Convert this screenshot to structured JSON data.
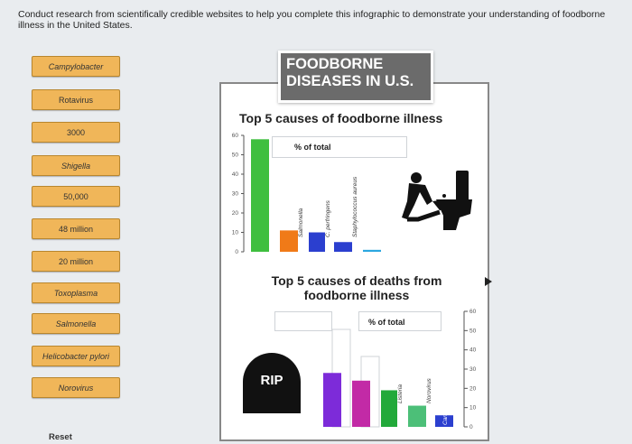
{
  "instructions": "Conduct research from scientifically credible websites to help you complete this infographic to demonstrate your understanding of foodborne illness in the United States.",
  "drag_items": [
    {
      "label": "Campylobacter",
      "italic": true
    },
    {
      "label": "Rotavirus",
      "italic": false
    },
    {
      "label": "3000",
      "italic": false
    },
    {
      "label": "Shigella",
      "italic": true
    },
    {
      "label": "50,000",
      "italic": false
    },
    {
      "label": "48 million",
      "italic": false
    },
    {
      "label": "20 million",
      "italic": false
    },
    {
      "label": "Toxoplasma",
      "italic": true
    },
    {
      "label": "Salmonella",
      "italic": true
    },
    {
      "label": "Helicobacter pylori",
      "italic": true
    },
    {
      "label": "Norovirus",
      "italic": true
    }
  ],
  "reset_label": "Reset",
  "banner": {
    "line1": "FOODBORNE",
    "line2": "DISEASES IN U.S."
  },
  "illness_chart": {
    "title": "Top 5 causes of foodborne illness",
    "pct_label": "% of total",
    "ticks": [
      "60",
      "50",
      "40",
      "30",
      "20",
      "10",
      "0"
    ]
  },
  "deaths_chart": {
    "title": "Top 5 causes of deaths from foodborne illness",
    "pct_label": "% of total",
    "ticks": [
      "60",
      "50",
      "40",
      "30",
      "20",
      "10",
      "0"
    ]
  },
  "rip_label": "RIP",
  "colors": {
    "green": "#3fbf3f",
    "orange": "#f07a18",
    "blue": "#2b3fcf",
    "purple": "#7d2bd9",
    "cyan": "#2ba7e0",
    "magenta": "#c22aa6",
    "green2": "#22a93a",
    "teal": "#4cbf78",
    "tile": "#f0b659"
  },
  "chart_data": [
    {
      "type": "bar",
      "title": "Top 5 causes of foodborne illness",
      "ylabel": "% of total",
      "ylim": [
        0,
        60
      ],
      "categories": [
        "",
        "Salmonella",
        "C. perfringens",
        "Staphylococcus aureus",
        ""
      ],
      "values": [
        58,
        11,
        10,
        5,
        1
      ],
      "bar_colors": [
        "#3fbf3f",
        "#f07a18",
        "#2b3fcf",
        "#2b3fcf",
        "#2ba7e0"
      ]
    },
    {
      "type": "bar",
      "title": "Top 5 causes of deaths from foodborne illness",
      "ylabel": "% of total",
      "ylim": [
        0,
        60
      ],
      "categories": [
        "",
        "",
        "Listeria",
        "Norovirus",
        "Campylobacter"
      ],
      "values": [
        28,
        24,
        19,
        11,
        6
      ],
      "bar_colors": [
        "#7d2bd9",
        "#c22aa6",
        "#22a93a",
        "#4cbf78",
        "#2b3fcf"
      ]
    }
  ]
}
